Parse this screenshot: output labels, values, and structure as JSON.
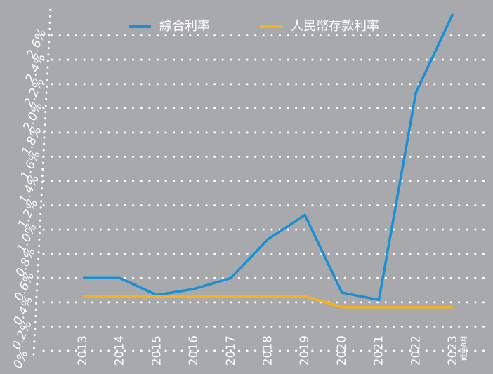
{
  "chart_data": {
    "type": "line",
    "categories": [
      "2013",
      "2014",
      "2015",
      "2016",
      "2017",
      "2018",
      "2019",
      "2020",
      "2021",
      "2022",
      "2023"
    ],
    "annotation": "截至8月",
    "series": [
      {
        "name": "綜合利率",
        "color": "#1a8fd1",
        "values": [
          0.6,
          0.6,
          0.46,
          0.51,
          0.6,
          0.92,
          1.12,
          0.48,
          0.42,
          2.13,
          2.78
        ]
      },
      {
        "name": "人民幣存款利率",
        "color": "#f5b21c",
        "values": [
          0.45,
          0.45,
          0.45,
          0.45,
          0.45,
          0.45,
          0.45,
          0.36,
          0.36,
          0.36,
          0.36
        ]
      }
    ],
    "ylim": [
      0,
      2.8
    ],
    "yticks": [
      {
        "value": 0,
        "label": "0%"
      },
      {
        "value": 0.2,
        "label": "0.2%"
      },
      {
        "value": 0.4,
        "label": "0.4%"
      },
      {
        "value": 0.6,
        "label": "0.6%"
      },
      {
        "value": 0.8,
        "label": "0.8%"
      },
      {
        "value": 1.0,
        "label": "1.0%"
      },
      {
        "value": 1.2,
        "label": "1.2%"
      },
      {
        "value": 1.4,
        "label": "1.4%"
      },
      {
        "value": 1.6,
        "label": "1.6%"
      },
      {
        "value": 1.8,
        "label": "1.8%"
      },
      {
        "value": 2.0,
        "label": "2.0%"
      },
      {
        "value": 2.2,
        "label": "2.2%"
      },
      {
        "value": 2.4,
        "label": "2.4%"
      },
      {
        "value": 2.6,
        "label": "2.6%"
      }
    ],
    "grid": true
  }
}
